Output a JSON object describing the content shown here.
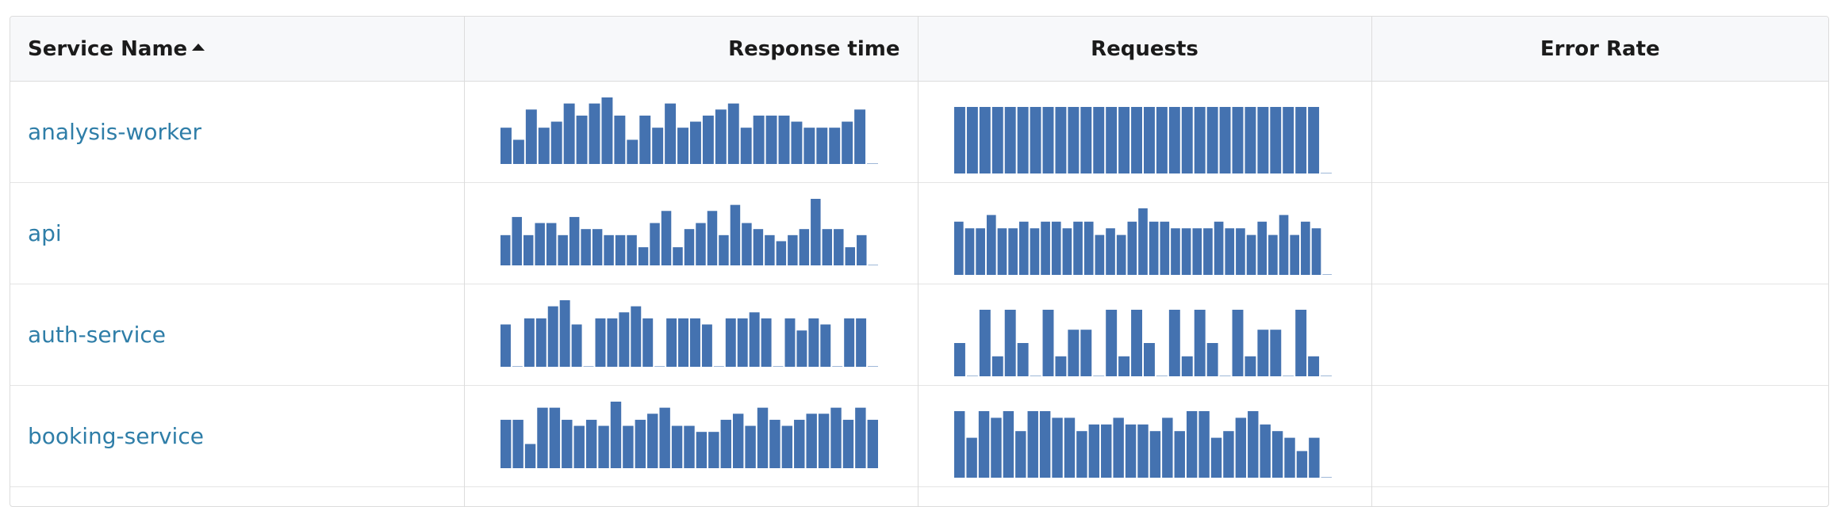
{
  "table": {
    "columns": [
      {
        "label": "Service Name",
        "sort": "ascending"
      },
      {
        "label": "Response time"
      },
      {
        "label": "Requests"
      },
      {
        "label": "Error Rate"
      }
    ],
    "rows": [
      {
        "service": "analysis-worker",
        "response_time": [
          6,
          4,
          9,
          6,
          7,
          10,
          8,
          10,
          11,
          8,
          4,
          8,
          6,
          10,
          6,
          7,
          8,
          9,
          10,
          6,
          8,
          8,
          8,
          7,
          6,
          6,
          6,
          7,
          9,
          0
        ],
        "requests": [
          10,
          10,
          10,
          10,
          10,
          10,
          10,
          10,
          10,
          10,
          10,
          10,
          10,
          10,
          10,
          10,
          10,
          10,
          10,
          10,
          10,
          10,
          10,
          10,
          10,
          10,
          10,
          10,
          10,
          0
        ],
        "error_rate": []
      },
      {
        "service": "api",
        "response_time": [
          5,
          8,
          5,
          7,
          7,
          5,
          8,
          6,
          6,
          5,
          5,
          5,
          3,
          7,
          9,
          3,
          6,
          7,
          9,
          5,
          10,
          7,
          6,
          5,
          4,
          5,
          6,
          11,
          6,
          6,
          3,
          5,
          0
        ],
        "requests": [
          8,
          7,
          7,
          9,
          7,
          7,
          8,
          7,
          8,
          8,
          7,
          8,
          8,
          6,
          7,
          6,
          8,
          10,
          8,
          8,
          7,
          7,
          7,
          7,
          8,
          7,
          7,
          6,
          8,
          6,
          9,
          6,
          8,
          7,
          0
        ],
        "error_rate": []
      },
      {
        "service": "auth-service",
        "response_time": [
          7,
          0,
          8,
          8,
          10,
          11,
          7,
          0,
          8,
          8,
          9,
          10,
          8,
          0,
          8,
          8,
          8,
          7,
          0,
          8,
          8,
          9,
          8,
          0,
          8,
          6,
          8,
          7,
          0,
          8,
          8,
          0
        ],
        "requests": [
          5,
          0,
          10,
          3,
          10,
          5,
          0,
          10,
          3,
          7,
          7,
          0,
          10,
          3,
          10,
          5,
          0,
          10,
          3,
          10,
          5,
          0,
          10,
          3,
          7,
          7,
          0,
          10,
          3,
          0
        ],
        "error_rate": []
      },
      {
        "service": "booking-service",
        "response_time": [
          8,
          8,
          4,
          10,
          10,
          8,
          7,
          8,
          7,
          11,
          7,
          8,
          9,
          10,
          7,
          7,
          6,
          6,
          8,
          9,
          7,
          10,
          8,
          7,
          8,
          9,
          9,
          10,
          8,
          10,
          8
        ],
        "requests": [
          10,
          6,
          10,
          9,
          10,
          7,
          10,
          10,
          9,
          9,
          7,
          8,
          8,
          9,
          8,
          8,
          7,
          9,
          7,
          10,
          10,
          6,
          7,
          9,
          10,
          8,
          7,
          6,
          4,
          6,
          0
        ],
        "error_rate": []
      },
      {
        "service": "",
        "response_time": [],
        "requests": [],
        "error_rate": []
      }
    ]
  },
  "colors": {
    "bar": "#4472b0",
    "baseline": "#9fb8d8",
    "link": "#2f7ea8"
  }
}
